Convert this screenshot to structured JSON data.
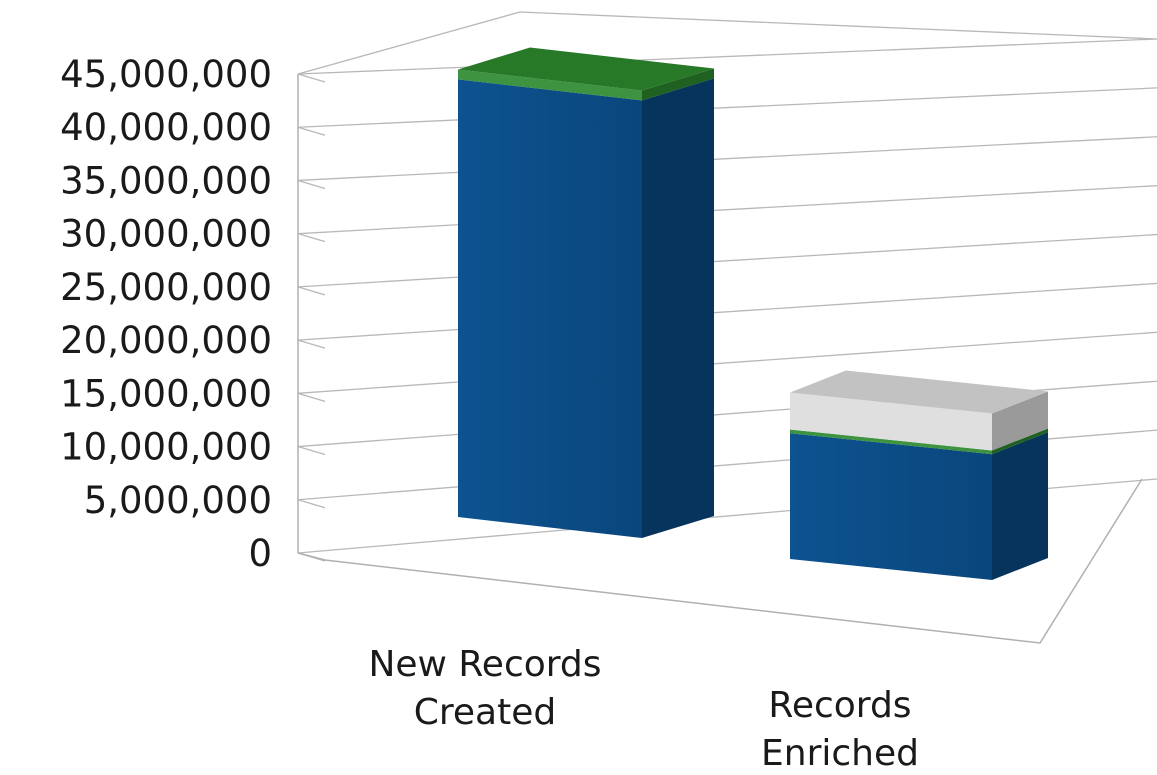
{
  "chart_data": {
    "type": "bar",
    "stacked": true,
    "three_d": true,
    "categories": [
      "New Records\nCreated",
      "Records\nEnriched"
    ],
    "series": [
      {
        "color": "#0a4a84",
        "values": [
          44200000,
          13600000
        ]
      },
      {
        "color": "#2c8a2e",
        "values": [
          1000000,
          400000
        ]
      },
      {
        "color": "#dcdcdc",
        "values": [
          0,
          4000000
        ]
      }
    ],
    "y_ticks": [
      "0",
      "5,000,000",
      "10,000,000",
      "15,000,000",
      "20,000,000",
      "25,000,000",
      "30,000,000",
      "35,000,000",
      "40,000,000",
      "45,000,000"
    ],
    "ylim": [
      0,
      45000000
    ],
    "grid": true,
    "title": "",
    "xlabel": "",
    "ylabel": ""
  }
}
